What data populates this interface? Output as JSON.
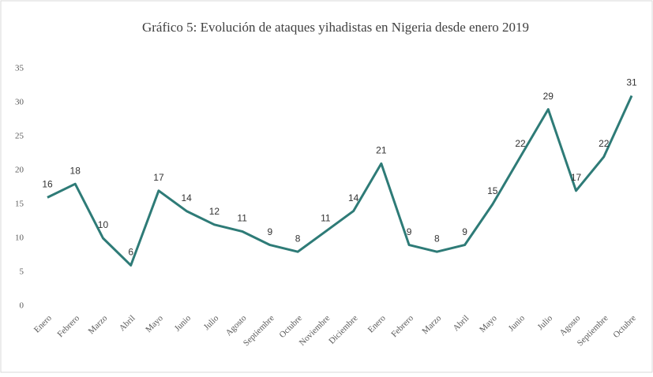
{
  "chart_data": {
    "type": "line",
    "title": "Gráfico 5: Evolución de ataques yihadistas en Nigeria desde enero 2019",
    "categories": [
      "Enero",
      "Febrero",
      "Marzo",
      "Abril",
      "Mayo",
      "Junio",
      "Julio",
      "Agosto",
      "Septiembre",
      "Octubre",
      "Noviembre",
      "Diciembre",
      "Enero",
      "Febrero",
      "Marzo",
      "Abril",
      "Mayo",
      "Junio",
      "Julio",
      "Agosto",
      "Septiembre",
      "Octubre"
    ],
    "values": [
      16,
      18,
      10,
      6,
      17,
      14,
      12,
      11,
      9,
      8,
      11,
      14,
      21,
      9,
      8,
      9,
      15,
      22,
      29,
      17,
      22,
      31
    ],
    "color": "#2e7b77",
    "ylim": [
      0,
      35
    ],
    "yticks": [
      0,
      5,
      10,
      15,
      20,
      25,
      30,
      35
    ],
    "grid": false
  }
}
